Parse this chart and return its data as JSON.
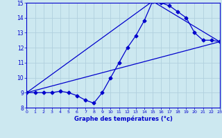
{
  "xlabel": "Graphe des températures (°c)",
  "bg_color": "#cce8f0",
  "grid_color": "#b0d0de",
  "line_color": "#0000cc",
  "xlim": [
    0,
    23
  ],
  "ylim": [
    8,
    15
  ],
  "xticks": [
    0,
    1,
    2,
    3,
    4,
    5,
    6,
    7,
    8,
    9,
    10,
    11,
    12,
    13,
    14,
    15,
    16,
    17,
    18,
    19,
    20,
    21,
    22,
    23
  ],
  "yticks": [
    8,
    9,
    10,
    11,
    12,
    13,
    14,
    15
  ],
  "series1_x": [
    0,
    1,
    2,
    3,
    4,
    5,
    6,
    7,
    8,
    9,
    10,
    11,
    12,
    13,
    14,
    15,
    16,
    17,
    18,
    19,
    20,
    21,
    22,
    23
  ],
  "series1_y": [
    9.0,
    9.0,
    9.0,
    9.0,
    9.1,
    9.0,
    8.8,
    8.5,
    8.3,
    9.0,
    10.0,
    11.0,
    12.0,
    12.8,
    13.8,
    15.1,
    15.0,
    14.8,
    14.4,
    14.0,
    13.0,
    12.5,
    12.5,
    12.4
  ],
  "series2_x": [
    0,
    23
  ],
  "series2_y": [
    9.0,
    12.4
  ],
  "series3_x": [
    0,
    15,
    23
  ],
  "series3_y": [
    9.0,
    15.1,
    12.4
  ]
}
